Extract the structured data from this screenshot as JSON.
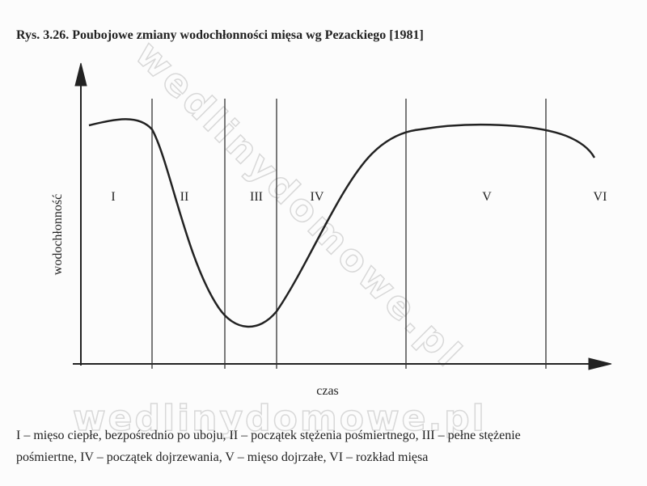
{
  "header": {
    "title": "Rys. 3.26. Poubojowe zmiany wodochłonności mięsa wg Pezackiego [1981]"
  },
  "diagram": {
    "y_label": "wodochłonność",
    "x_label": "czas",
    "zones": [
      "I",
      "II",
      "III",
      "IV",
      "V",
      "VI"
    ]
  },
  "caption": {
    "lines": [
      "I – mięso ciepłe, bezpośrednio po uboju, II – początek stężenia pośmiertnego, III – pełne stężenie",
      "pośmiertne, IV – początek dojrzewania, V – mięso dojrzałe, VI – rozkład mięsa"
    ]
  },
  "watermark": {
    "diagonal": "wedlinydomowe.pl",
    "horizontal": "wedlinydomowe.pl"
  }
}
